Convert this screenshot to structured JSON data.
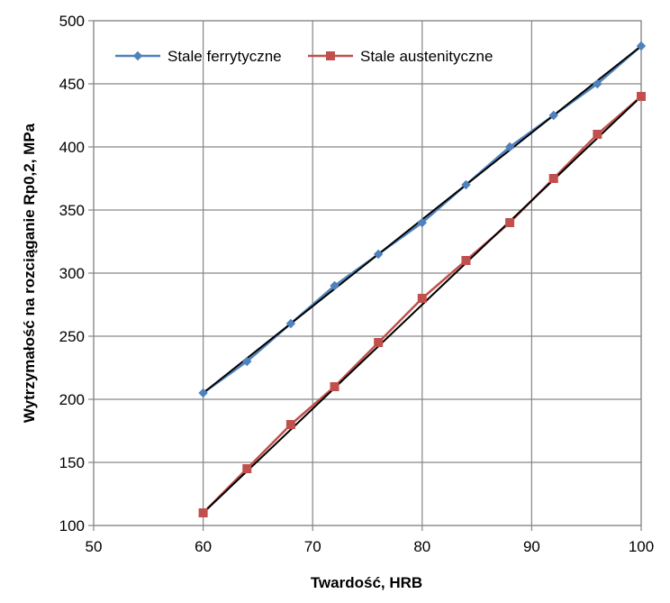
{
  "chart_data": {
    "type": "line",
    "title": "",
    "xlabel": "Twardość, HRB",
    "ylabel": "Wytrzymałość na rozciąganie Rp0,2, MPa",
    "xlim": [
      50,
      100
    ],
    "ylim": [
      100,
      500
    ],
    "x_ticks": [
      50,
      60,
      70,
      80,
      90,
      100
    ],
    "y_ticks": [
      100,
      150,
      200,
      250,
      300,
      350,
      400,
      450,
      500
    ],
    "grid": true,
    "legend_position": "top",
    "series": [
      {
        "name": "Stale ferrytyczne",
        "color": "#4f81bd",
        "marker": "diamond",
        "x": [
          60,
          64,
          68,
          72,
          76,
          80,
          84,
          88,
          92,
          96,
          100
        ],
        "y": [
          205,
          230,
          260,
          290,
          315,
          340,
          370,
          400,
          425,
          450,
          480
        ],
        "trendline": {
          "color": "#000000",
          "from": [
            60,
            205
          ],
          "to": [
            100,
            480
          ]
        }
      },
      {
        "name": "Stale austenityczne",
        "color": "#c0504d",
        "marker": "square",
        "x": [
          60,
          64,
          68,
          72,
          76,
          80,
          84,
          88,
          92,
          96,
          100
        ],
        "y": [
          110,
          145,
          180,
          210,
          245,
          280,
          310,
          340,
          375,
          410,
          440
        ],
        "trendline": {
          "color": "#000000",
          "from": [
            60,
            110
          ],
          "to": [
            100,
            440
          ]
        }
      }
    ]
  }
}
